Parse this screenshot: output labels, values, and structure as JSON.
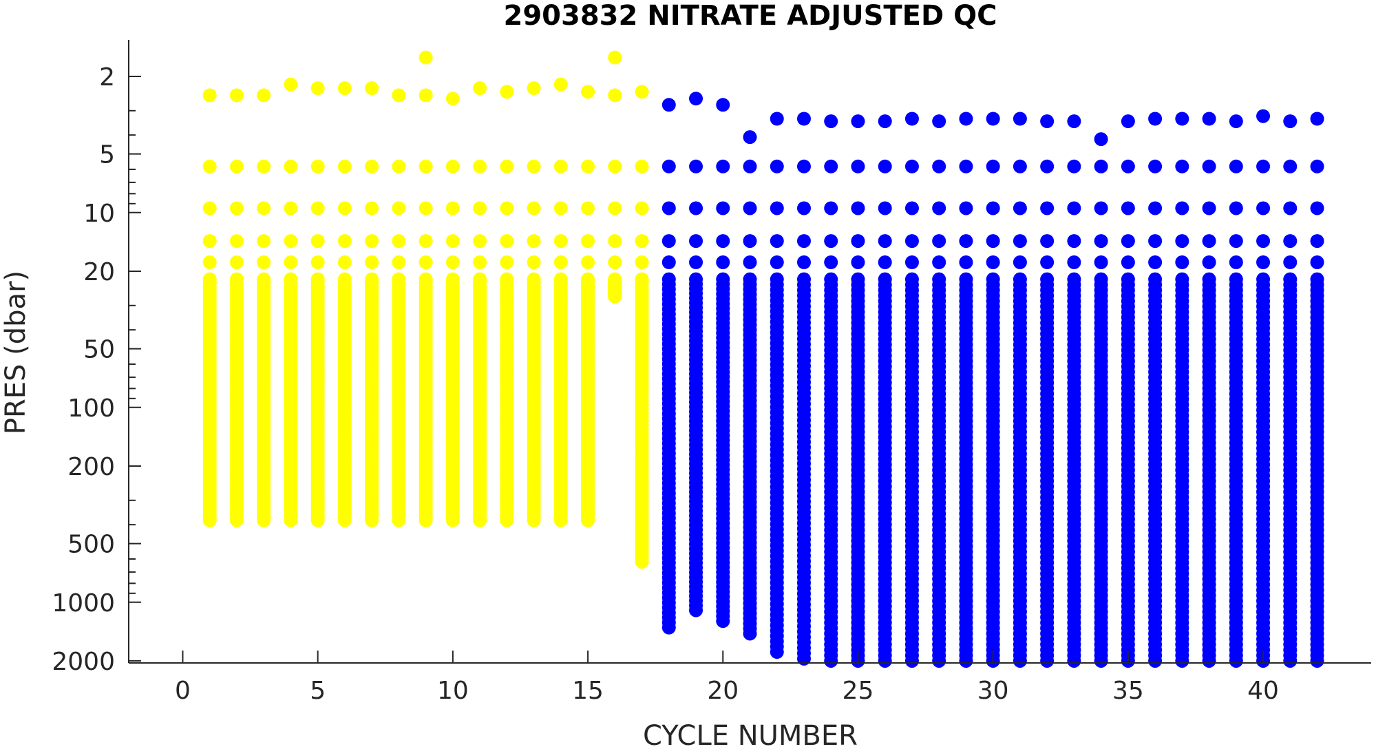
{
  "chart_data": {
    "type": "scatter",
    "title": "2903832  NITRATE ADJUSTED QC",
    "xlabel": "CYCLE NUMBER",
    "ylabel": "PRES (dbar)",
    "x_ticks": [
      0,
      5,
      10,
      15,
      20,
      25,
      30,
      35,
      40
    ],
    "x_tick_labels": [
      "0",
      "5",
      "10",
      "15",
      "20",
      "25",
      "30",
      "35",
      "40"
    ],
    "y_ticks": [
      2,
      5,
      10,
      20,
      50,
      100,
      200,
      500,
      1000,
      2000
    ],
    "y_tick_labels": [
      "2",
      "5",
      "10",
      "20",
      "50",
      "100",
      "200",
      "500",
      "1000",
      "2000"
    ],
    "xlim": [
      -2,
      44
    ],
    "ylim": [
      1.3,
      2050
    ],
    "y_scale": "log",
    "y_reversed": true,
    "grid": false,
    "series": [
      {
        "color": "#ffff00",
        "top_levels": [
          2.5,
          5.8,
          9.5,
          14,
          18
        ],
        "profile_range": [
          22,
          380
        ],
        "profiles": [
          {
            "x": 1,
            "top": 2.5,
            "max": 380
          },
          {
            "x": 2,
            "top": 2.5,
            "max": 380
          },
          {
            "x": 3,
            "top": 2.5,
            "max": 380
          },
          {
            "x": 4,
            "top": 2.2,
            "max": 380
          },
          {
            "x": 5,
            "top": 2.3,
            "max": 380
          },
          {
            "x": 6,
            "top": 2.3,
            "max": 380
          },
          {
            "x": 7,
            "top": 2.3,
            "max": 380
          },
          {
            "x": 8,
            "top": 2.5,
            "max": 380
          },
          {
            "x": 9,
            "top": 1.6,
            "max": 380
          },
          {
            "x": 10,
            "top": 2.6,
            "max": 380
          },
          {
            "x": 11,
            "top": 2.3,
            "max": 380
          },
          {
            "x": 12,
            "top": 2.4,
            "max": 380
          },
          {
            "x": 13,
            "top": 2.3,
            "max": 380
          },
          {
            "x": 14,
            "top": 2.2,
            "max": 380
          },
          {
            "x": 15,
            "top": 2.4,
            "max": 380
          },
          {
            "x": 16,
            "top": 1.6,
            "max": 27
          },
          {
            "x": 17,
            "top": 2.4,
            "max": 620
          }
        ]
      },
      {
        "color": "#0000ff",
        "top_levels": [
          5.8,
          9.5,
          14,
          18
        ],
        "profile_range": [
          22,
          2000
        ],
        "profiles": [
          {
            "x": 18,
            "top": 2.8,
            "max": 1350
          },
          {
            "x": 19,
            "top": 2.6,
            "max": 1100
          },
          {
            "x": 20,
            "top": 2.8,
            "max": 1250
          },
          {
            "x": 21,
            "top": 4.1,
            "max": 1450
          },
          {
            "x": 22,
            "top": 3.3,
            "max": 1800
          },
          {
            "x": 23,
            "top": 3.3,
            "max": 1950
          },
          {
            "x": 24,
            "top": 3.4,
            "max": 2000
          },
          {
            "x": 25,
            "top": 3.4,
            "max": 2000
          },
          {
            "x": 26,
            "top": 3.4,
            "max": 2000
          },
          {
            "x": 27,
            "top": 3.3,
            "max": 2000
          },
          {
            "x": 28,
            "top": 3.4,
            "max": 2000
          },
          {
            "x": 29,
            "top": 3.3,
            "max": 2000
          },
          {
            "x": 30,
            "top": 3.3,
            "max": 2000
          },
          {
            "x": 31,
            "top": 3.3,
            "max": 2000
          },
          {
            "x": 32,
            "top": 3.4,
            "max": 2000
          },
          {
            "x": 33,
            "top": 3.4,
            "max": 2000
          },
          {
            "x": 34,
            "top": 4.2,
            "max": 2000
          },
          {
            "x": 35,
            "top": 3.4,
            "max": 2000
          },
          {
            "x": 36,
            "top": 3.3,
            "max": 2000
          },
          {
            "x": 37,
            "top": 3.3,
            "max": 2000
          },
          {
            "x": 38,
            "top": 3.3,
            "max": 2000
          },
          {
            "x": 39,
            "top": 3.4,
            "max": 2000
          },
          {
            "x": 40,
            "top": 3.2,
            "max": 2000
          },
          {
            "x": 41,
            "top": 3.4,
            "max": 2000
          },
          {
            "x": 42,
            "top": 3.3,
            "max": 2000
          }
        ]
      }
    ]
  }
}
